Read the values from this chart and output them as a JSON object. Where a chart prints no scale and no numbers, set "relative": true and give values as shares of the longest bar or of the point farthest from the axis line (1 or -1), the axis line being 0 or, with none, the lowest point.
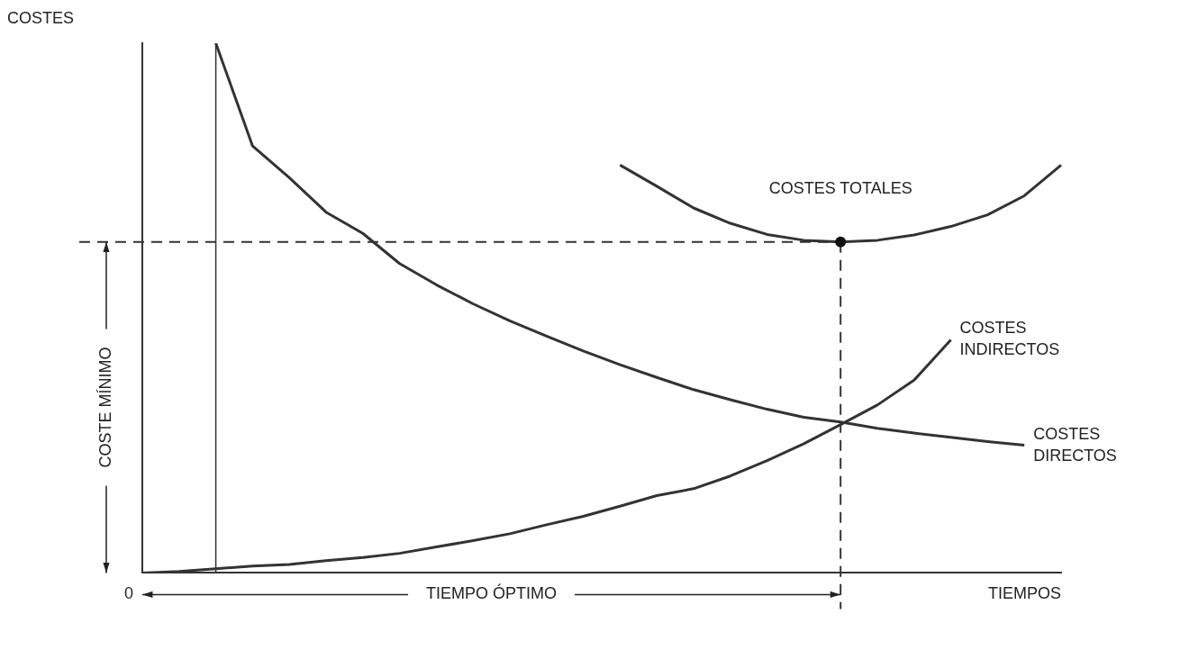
{
  "chart_data": {
    "type": "line",
    "relative": true,
    "ylabel": "COSTES",
    "xlabel": "TIEMPOS",
    "grid": false,
    "legend": false,
    "line_style": "solid",
    "categories": [
      null,
      null,
      null,
      null,
      null,
      null,
      null,
      null,
      null,
      null,
      null,
      null,
      null,
      null,
      null,
      null,
      null,
      null,
      null,
      null,
      null,
      null,
      null,
      null,
      null,
      null
    ],
    "series": [
      {
        "name": "COSTES DIRECTOS",
        "color": "#333333",
        "values": [
          null,
          null,
          1.0,
          0.806,
          0.746,
          0.681,
          0.641,
          0.584,
          0.544,
          0.508,
          0.476,
          0.447,
          0.419,
          0.393,
          0.369,
          0.346,
          0.327,
          0.309,
          0.294,
          0.285,
          0.273,
          0.264,
          0.256,
          0.248,
          0.241,
          null
        ]
      },
      {
        "name": "COSTES INDIRECTOS",
        "color": "#333333",
        "values": [
          0,
          0.003,
          0.008,
          0.013,
          0.016,
          0.023,
          0.029,
          0.037,
          0.049,
          0.061,
          0.074,
          0.091,
          0.107,
          0.126,
          0.146,
          0.159,
          0.183,
          0.212,
          0.244,
          0.28,
          0.317,
          0.364,
          0.44,
          null,
          null,
          null
        ]
      },
      {
        "name": "COSTES TOTALES",
        "color": "#333333",
        "values": [
          null,
          null,
          null,
          null,
          null,
          null,
          null,
          null,
          null,
          null,
          null,
          null,
          null,
          0.77,
          0.73,
          0.689,
          0.66,
          0.639,
          0.628,
          0.625,
          0.628,
          0.638,
          0.654,
          0.676,
          0.712,
          0.77
        ]
      }
    ],
    "ref_lines": [
      {
        "axis": "y",
        "value": 0.625,
        "line_style": "dashed",
        "color": "#333333"
      }
    ],
    "annotations": [
      "COSTE MÍNIMO",
      "TIEMPO ÓPTIMO",
      "0"
    ]
  }
}
